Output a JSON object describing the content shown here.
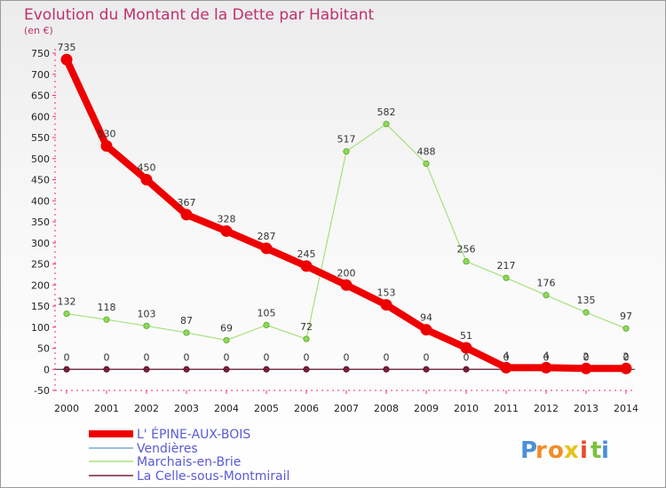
{
  "chart_data": {
    "type": "line",
    "title": "Evolution du Montant de la Dette par Habitant",
    "subtitle": "(en €)",
    "x": [
      "2000",
      "2001",
      "2002",
      "2003",
      "2004",
      "2005",
      "2006",
      "2007",
      "2008",
      "2009",
      "2010",
      "2011",
      "2012",
      "2013",
      "2014"
    ],
    "yticks": [
      -50,
      0,
      50,
      100,
      150,
      200,
      250,
      300,
      350,
      400,
      450,
      500,
      550,
      600,
      650,
      700,
      750
    ],
    "ylim": [
      -50,
      750
    ],
    "grid": false,
    "legend_position": "bottom-left",
    "series": [
      {
        "name": "L' ÉPINE-AUX-BOIS",
        "color": "#ee0000",
        "values": [
          735,
          530,
          450,
          367,
          328,
          287,
          245,
          200,
          153,
          94,
          51,
          4,
          4,
          2,
          2
        ],
        "labels": [
          "735",
          "530",
          "450",
          "367",
          "328",
          "287",
          "245",
          "200",
          "153",
          "94",
          "51",
          "4",
          "4",
          "2",
          "2"
        ]
      },
      {
        "name": "Vendières",
        "color": "#7aa6d6",
        "values": [
          0,
          0,
          0,
          0,
          0,
          0,
          0,
          0,
          0,
          0,
          0,
          0,
          0,
          0,
          0
        ],
        "labels": []
      },
      {
        "name": "Marchais-en-Brie",
        "color": "#a6e07c",
        "values": [
          132,
          118,
          103,
          87,
          69,
          105,
          72,
          517,
          582,
          488,
          256,
          217,
          176,
          135,
          97
        ],
        "labels": [
          "132",
          "118",
          "103",
          "87",
          "69",
          "105",
          "72",
          "517",
          "582",
          "488",
          "256",
          "217",
          "176",
          "135",
          "97"
        ]
      },
      {
        "name": "La Celle-sous-Montmirail",
        "color": "#7a2038",
        "values": [
          0,
          0,
          0,
          0,
          0,
          0,
          0,
          0,
          0,
          0,
          0,
          0,
          0,
          0,
          0
        ],
        "labels": [
          "0",
          "0",
          "0",
          "0",
          "0",
          "0",
          "0",
          "0",
          "0",
          "0",
          "0",
          "0",
          "0",
          "0",
          "0"
        ]
      }
    ]
  },
  "logo": {
    "letters": [
      "P",
      "r",
      "o",
      "x",
      "i",
      "t",
      "i"
    ],
    "colors": [
      "#4a90d9",
      "#f28c28",
      "#f28c28",
      "#e8c21a",
      "#e84a2a",
      "#7cc142",
      "#4a90d9"
    ]
  }
}
